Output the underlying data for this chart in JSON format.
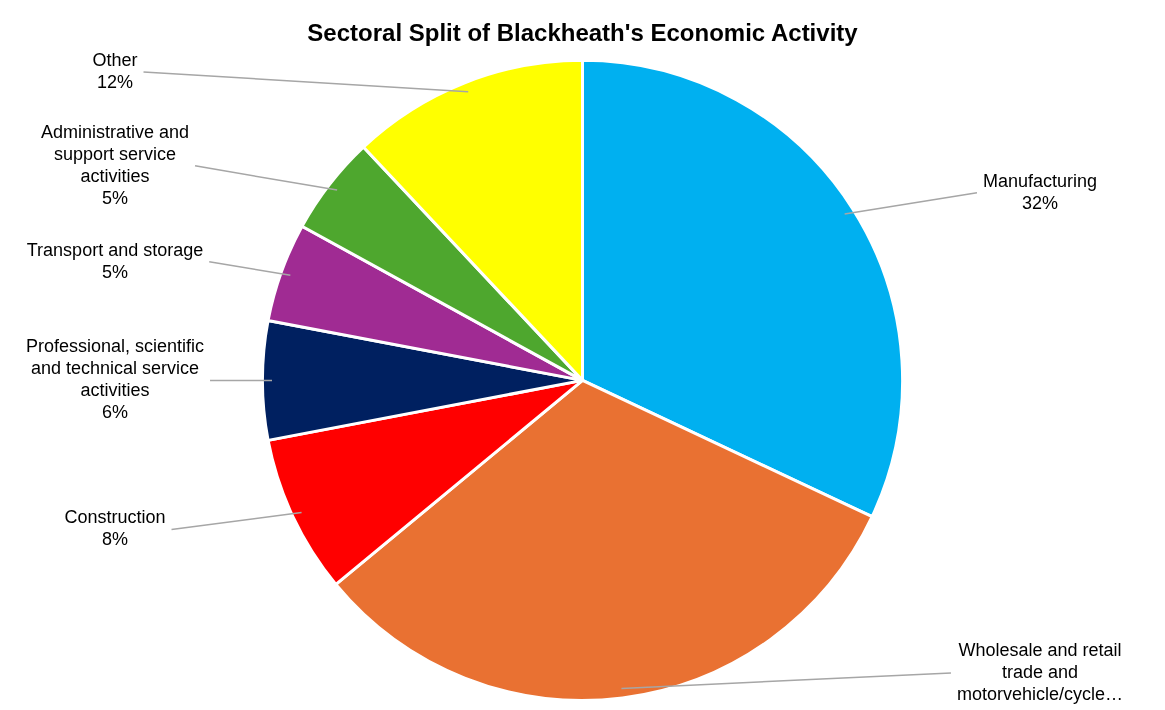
{
  "chart_data": {
    "type": "pie",
    "title": "Sectoral Split of Blackheath's Economic Activity",
    "categories": [
      "Manufacturing",
      "Wholesale and retail trade and motorvehicle/cycle…",
      "Construction",
      "Professional, scientific and technical service activities",
      "Transport and storage",
      "Administrative and support service activities",
      "Other"
    ],
    "values": [
      32,
      32,
      8,
      6,
      5,
      5,
      12
    ],
    "value_labels": [
      "32%",
      null,
      "8%",
      "6%",
      "5%",
      "5%",
      "12%"
    ],
    "colors": [
      "#00b0f0",
      "#e97132",
      "#ff0000",
      "#002060",
      "#a02b93",
      "#4ea72e",
      "#ffff00"
    ],
    "legend": false
  }
}
